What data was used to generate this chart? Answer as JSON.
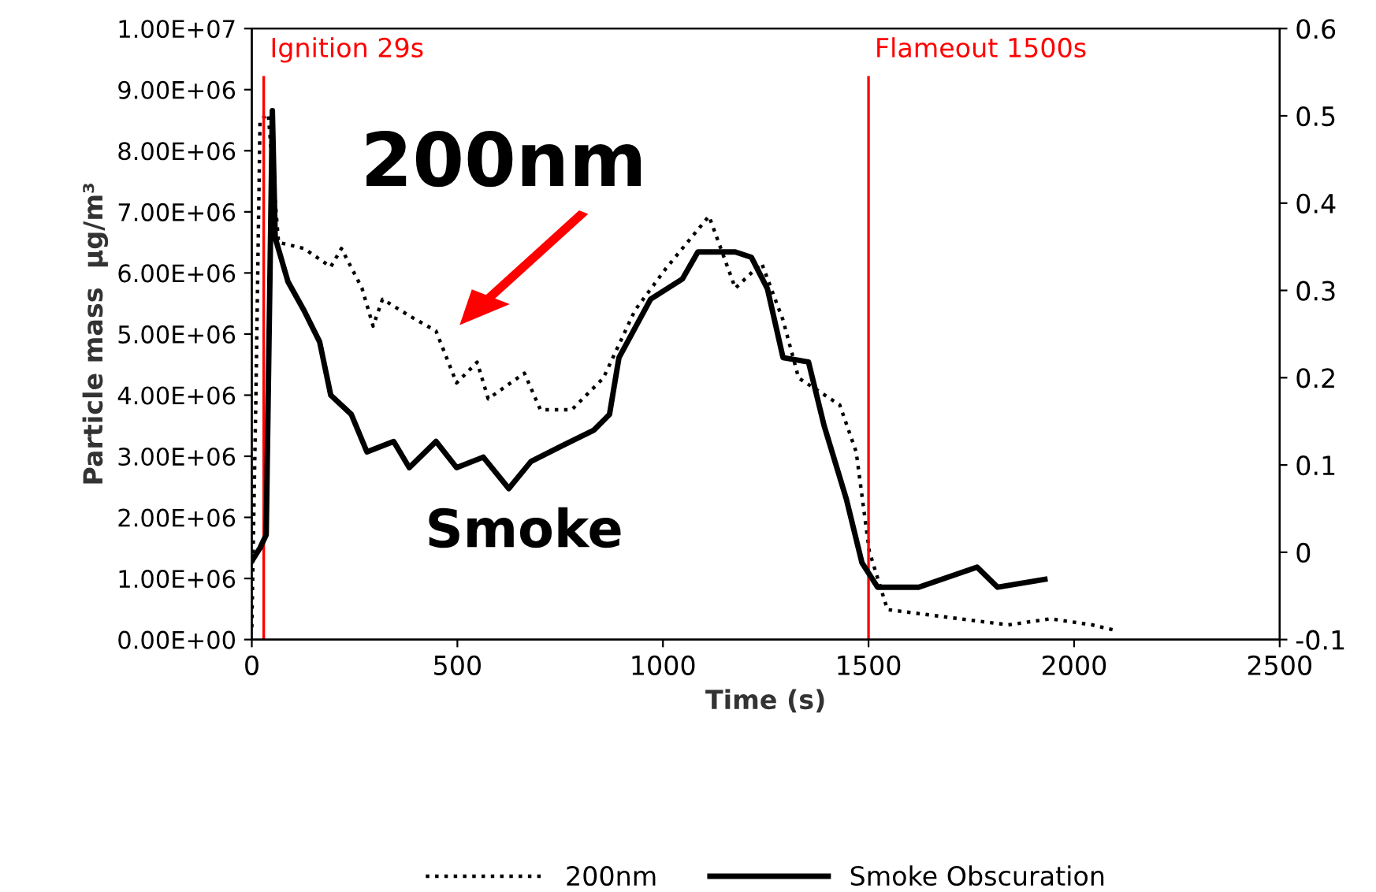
{
  "chart_data": {
    "type": "line",
    "xlabel": "Time (s)",
    "ylabel": "Particle mass  µg/m³",
    "xlim": [
      0,
      2500
    ],
    "xticks": [
      0,
      500,
      1000,
      1500,
      2000,
      2500
    ],
    "ylim": [
      0,
      10000000
    ],
    "yticks": [
      {
        "value": 0,
        "label": "0.00E+00"
      },
      {
        "value": 1000000,
        "label": "1.00E+06"
      },
      {
        "value": 2000000,
        "label": "2.00E+06"
      },
      {
        "value": 3000000,
        "label": "3.00E+06"
      },
      {
        "value": 4000000,
        "label": "4.00E+06"
      },
      {
        "value": 5000000,
        "label": "5.00E+06"
      },
      {
        "value": 6000000,
        "label": "6.00E+06"
      },
      {
        "value": 7000000,
        "label": "7.00E+06"
      },
      {
        "value": 8000000,
        "label": "8.00E+06"
      },
      {
        "value": 9000000,
        "label": "9.00E+06"
      },
      {
        "value": 10000000,
        "label": "1.00E+07"
      }
    ],
    "y2lim": [
      -0.1,
      0.6
    ],
    "y2ticks": [
      -0.1,
      0,
      0.1,
      0.2,
      0.3,
      0.4,
      0.5,
      0.6
    ],
    "grid": false,
    "legend": "bottom",
    "marker": "none",
    "series": [
      {
        "name": "200nm",
        "color": "#000000",
        "line_style": "dotted",
        "x": [
          0,
          10,
          20,
          40,
          65,
          127,
          192,
          218,
          268,
          295,
          318,
          383,
          448,
          498,
          548,
          575,
          663,
          702,
          778,
          855,
          932,
          1008,
          1112,
          1176,
          1240,
          1292,
          1330,
          1430,
          1470,
          1502,
          1546,
          1687,
          1840,
          1943,
          2044,
          2100
        ],
        "values": [
          200000,
          4000000,
          8500000,
          8600000,
          6500000,
          6400000,
          6100000,
          6400000,
          5750000,
          5130000,
          5570000,
          5300000,
          5050000,
          4200000,
          4540000,
          3940000,
          4360000,
          3760000,
          3760000,
          4280000,
          5390000,
          6080000,
          6930000,
          5750000,
          6160000,
          5230000,
          4280000,
          3840000,
          3070000,
          1440000,
          490000,
          370000,
          240000,
          340000,
          240000,
          150000
        ]
      },
      {
        "name": "Smoke Obscuration",
        "color": "#000000",
        "line_style": "solid",
        "axis": "y2",
        "x": [
          0,
          20,
          35,
          50,
          57,
          88,
          127,
          165,
          192,
          242,
          280,
          345,
          383,
          448,
          498,
          563,
          625,
          679,
          755,
          832,
          870,
          893,
          970,
          1047,
          1085,
          1176,
          1215,
          1254,
          1292,
          1354,
          1392,
          1446,
          1484,
          1522,
          1622,
          1764,
          1814,
          1929
        ],
        "values": [
          -0.01,
          0.005,
          0.02,
          0.506,
          0.36,
          0.31,
          0.277,
          0.241,
          0.18,
          0.158,
          0.115,
          0.127,
          0.097,
          0.127,
          0.097,
          0.109,
          0.073,
          0.104,
          0.122,
          0.14,
          0.158,
          0.223,
          0.29,
          0.313,
          0.344,
          0.344,
          0.338,
          0.302,
          0.223,
          0.218,
          0.145,
          0.061,
          -0.012,
          -0.04,
          -0.04,
          -0.017,
          -0.04,
          -0.031
        ]
      }
    ],
    "ref_lines": [
      {
        "axis": "x",
        "value": 29,
        "label": "Ignition 29s",
        "color": "#ff0000"
      },
      {
        "axis": "x",
        "value": 1500,
        "label": "Flameout 1500s",
        "color": "#ff0000"
      }
    ],
    "annotations": [
      "200nm",
      "Smoke"
    ]
  }
}
